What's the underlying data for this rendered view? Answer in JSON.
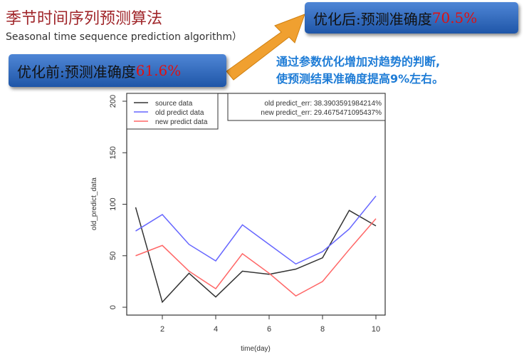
{
  "slide": {
    "title": "季节时间序列预测算法",
    "subtitle": "Seasonal time sequence prediction algorithm）",
    "before": {
      "label": "优化前:预测准确度",
      "value": "61.6%"
    },
    "after": {
      "label": "优化后:预测准确度",
      "value": "70.5%"
    },
    "note_line1": "通过参数优化增加对趋势的判断,",
    "note_line2": "使预测结果准确度提高9%左右。",
    "arrow_color": "#f0a030"
  },
  "chart_data": {
    "type": "line",
    "xlabel": "time(day)",
    "ylabel": "old_predict_data",
    "xlim": [
      1,
      10
    ],
    "ylim": [
      0,
      200
    ],
    "xticks": [
      2,
      4,
      6,
      8,
      10
    ],
    "yticks": [
      0,
      50,
      100,
      150,
      200
    ],
    "x": [
      1,
      2,
      3,
      4,
      5,
      6,
      7,
      8,
      9,
      10
    ],
    "series": [
      {
        "name": "source data",
        "color": "#333333",
        "values": [
          97,
          5,
          33,
          10,
          35,
          32,
          37,
          48,
          94,
          79
        ]
      },
      {
        "name": "old predict data",
        "color": "#6666ff",
        "values": [
          74,
          90,
          61,
          45,
          80,
          61,
          42,
          54,
          76,
          108
        ]
      },
      {
        "name": "new predict data",
        "color": "#ff6666",
        "values": [
          50,
          60,
          35,
          18,
          52,
          33,
          11,
          25,
          56,
          86
        ]
      }
    ],
    "legend_placement": "top-left",
    "annotations": [
      "old predict_err: 38.3903591984214%",
      "new predict_err: 29.4675471095437%"
    ]
  }
}
